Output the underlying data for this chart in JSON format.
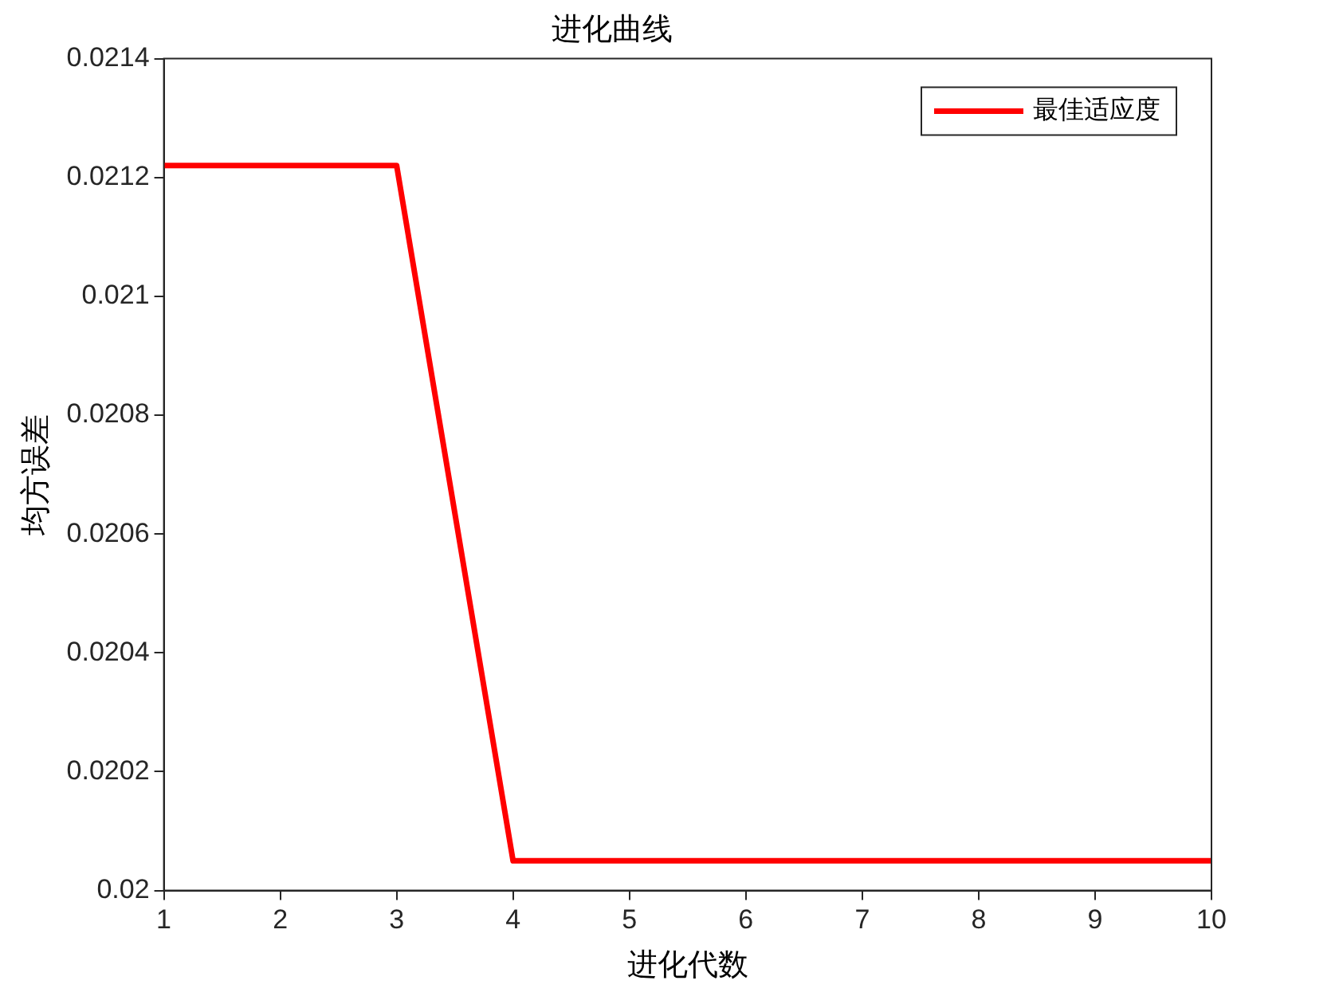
{
  "chart_data": {
    "type": "line",
    "title": "进化曲线",
    "xlabel": "进化代数",
    "ylabel": "均方误差",
    "x": [
      1,
      2,
      3,
      4,
      5,
      6,
      7,
      8,
      9,
      10
    ],
    "series": [
      {
        "name": "最佳适应度",
        "color": "#ff0000",
        "values": [
          0.02122,
          0.02122,
          0.02122,
          0.02005,
          0.02005,
          0.02005,
          0.02005,
          0.02005,
          0.02005,
          0.02005
        ]
      }
    ],
    "xlim": [
      1,
      10
    ],
    "xticks": [
      1,
      2,
      3,
      4,
      5,
      6,
      7,
      8,
      9,
      10
    ],
    "ylim": [
      0.02,
      0.0214
    ],
    "yticks": [
      0.02,
      0.0202,
      0.0204,
      0.0206,
      0.0208,
      0.021,
      0.0212,
      0.0214
    ],
    "grid": false,
    "legend": "top right",
    "marker": "none",
    "line_style": "solid"
  }
}
